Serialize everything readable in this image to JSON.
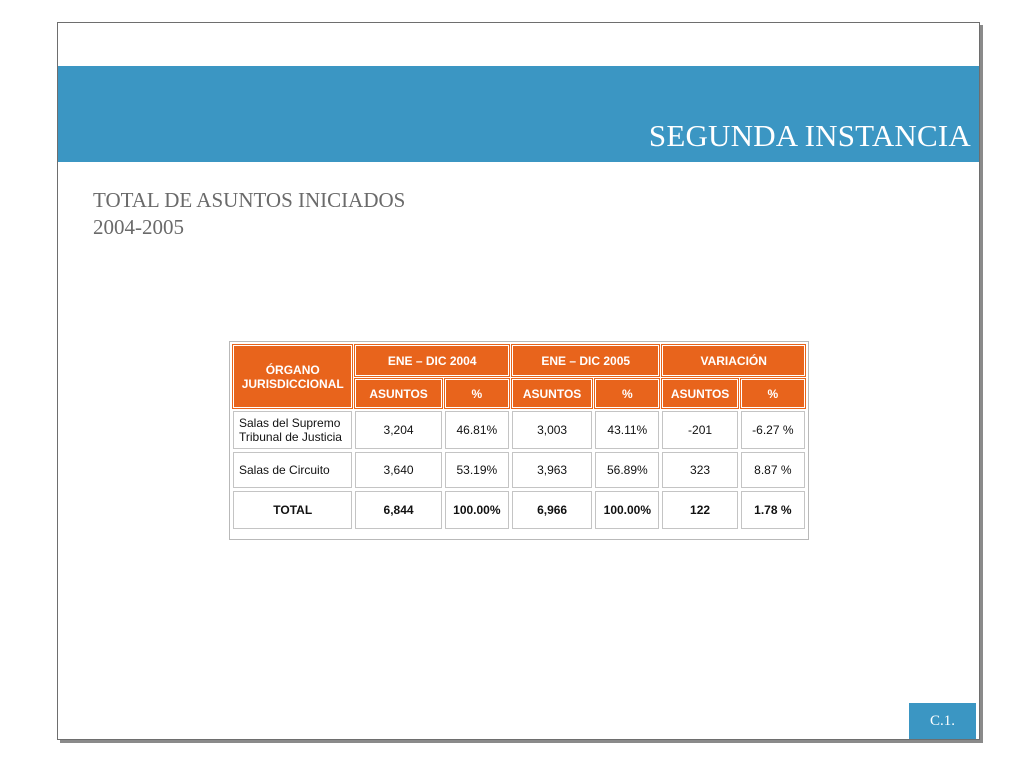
{
  "banner": {
    "title": "SEGUNDA INSTANCIA"
  },
  "subtitle": {
    "line1": "TOTAL DE ASUNTOS INICIADOS",
    "line2": "2004-2005"
  },
  "table": {
    "header_organo": "ÓRGANO JURISDICCIONAL",
    "header_2004": "ENE – DIC 2004",
    "header_2005": "ENE – DIC 2005",
    "header_variacion": "VARIACIÓN",
    "sub_asuntos": "ASUNTOS",
    "sub_pct": "%",
    "rows": [
      {
        "organo": "Salas del Supremo Tribunal de Justicia",
        "a2004": "3,204",
        "p2004": "46.81%",
        "a2005": "3,003",
        "p2005": "43.11%",
        "avar": "-201",
        "pvar": "-6.27 %"
      },
      {
        "organo": "Salas de Circuito",
        "a2004": "3,640",
        "p2004": "53.19%",
        "a2005": "3,963",
        "p2005": "56.89%",
        "avar": "323",
        "pvar": "8.87 %"
      }
    ],
    "total": {
      "organo": "TOTAL",
      "a2004": "6,844",
      "p2004": "100.00%",
      "a2005": "6,966",
      "p2005": "100.00%",
      "avar": "122",
      "pvar": "1.78 %"
    }
  },
  "footer": {
    "label": "C.1."
  },
  "colors": {
    "accent_blue": "#3b96c3",
    "header_orange": "#e8641c"
  }
}
